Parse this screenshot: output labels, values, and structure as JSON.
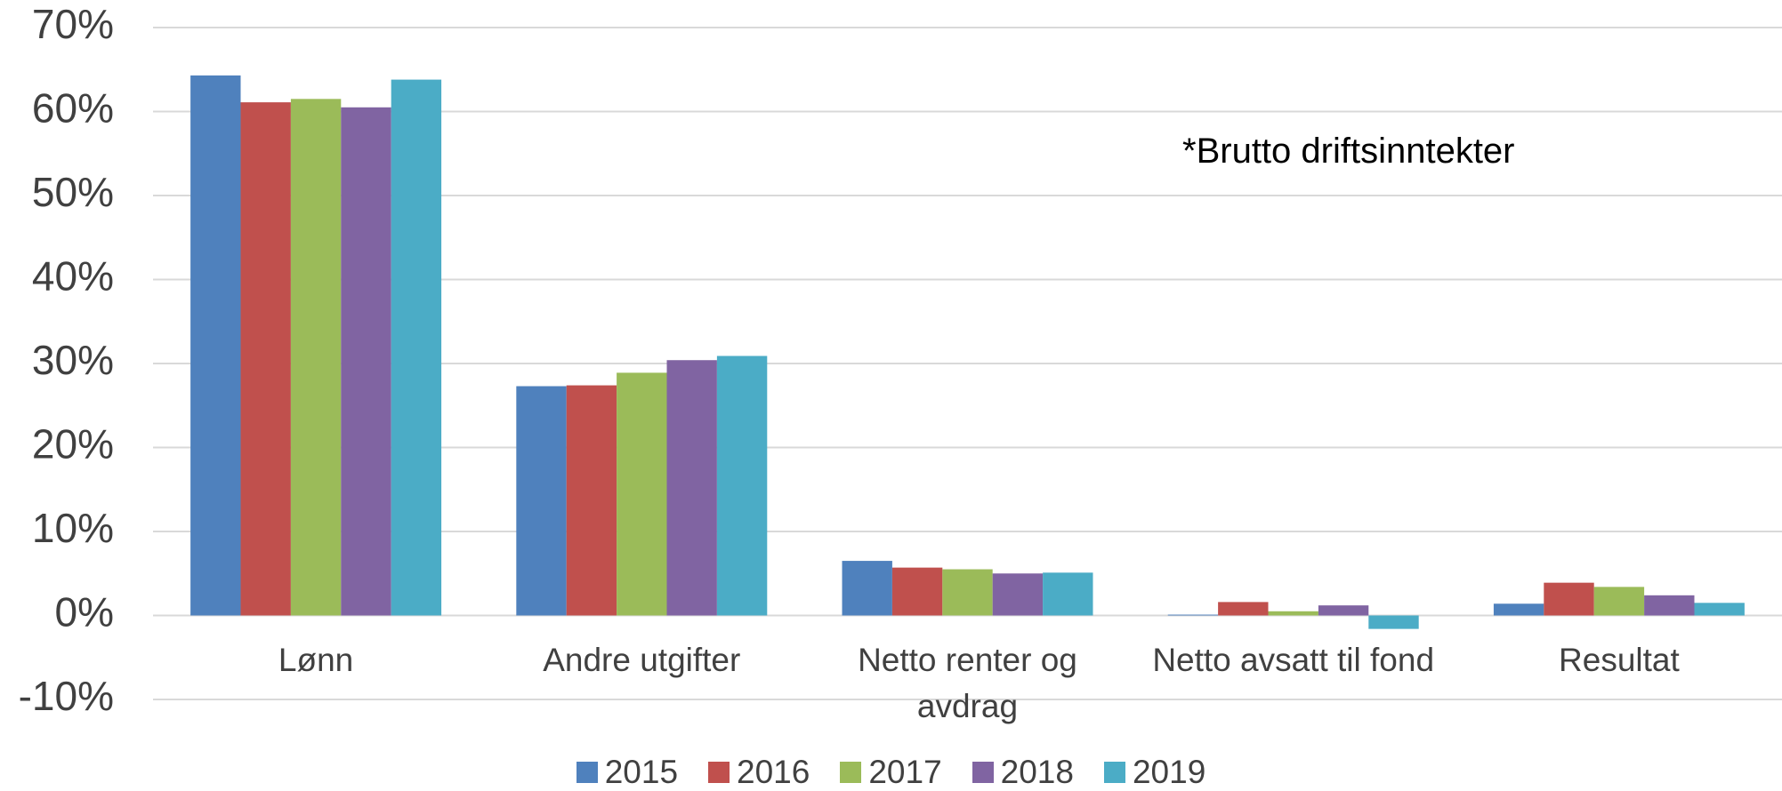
{
  "chart_data": {
    "type": "bar",
    "annotation": "*Brutto driftsinntekter",
    "categories": [
      "Lønn",
      "Andre utgifter",
      "Netto renter og avdrag",
      "Netto avsatt til fond",
      "Resultat"
    ],
    "series": [
      {
        "name": "2015",
        "color": "#4f81bd",
        "values": [
          64.3,
          27.3,
          6.5,
          0.1,
          1.4
        ]
      },
      {
        "name": "2016",
        "color": "#c0504d",
        "values": [
          61.1,
          27.4,
          5.7,
          1.6,
          3.9
        ]
      },
      {
        "name": "2017",
        "color": "#9bbb59",
        "values": [
          61.5,
          28.9,
          5.5,
          0.5,
          3.4
        ]
      },
      {
        "name": "2018",
        "color": "#8064a2",
        "values": [
          60.5,
          30.4,
          5.0,
          1.2,
          2.4
        ]
      },
      {
        "name": "2019",
        "color": "#4bacc6",
        "values": [
          63.8,
          30.9,
          5.1,
          -1.6,
          1.5
        ]
      }
    ],
    "ylim": [
      -10,
      70
    ],
    "yticks": [
      {
        "value": -10,
        "label": "-10%"
      },
      {
        "value": 0,
        "label": "0%"
      },
      {
        "value": 10,
        "label": "10%"
      },
      {
        "value": 20,
        "label": "20%"
      },
      {
        "value": 30,
        "label": "30%"
      },
      {
        "value": 40,
        "label": "40%"
      },
      {
        "value": 50,
        "label": "50%"
      },
      {
        "value": 60,
        "label": "60%"
      },
      {
        "value": 70,
        "label": "70%"
      }
    ],
    "grid": true
  }
}
